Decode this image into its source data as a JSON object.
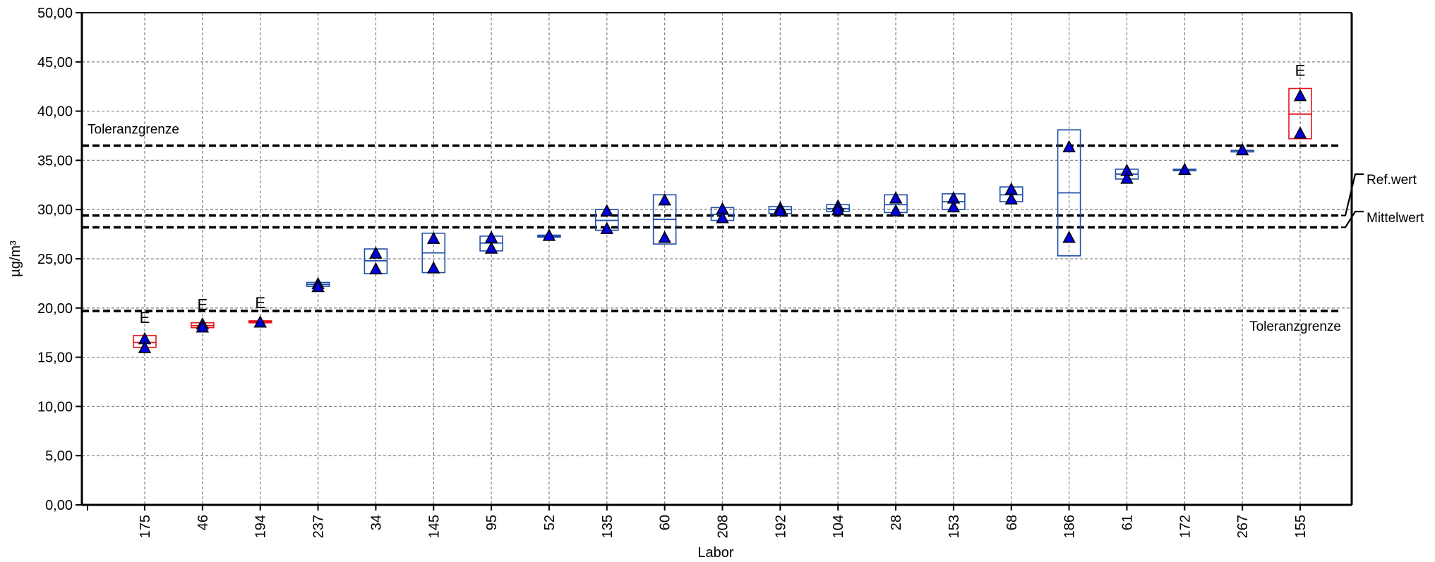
{
  "chart_data": {
    "type": "box",
    "xlabel": "Labor",
    "ylabel": "µg/m³",
    "ylim": [
      0,
      50
    ],
    "yticks": [
      "0,00",
      "5,00",
      "10,00",
      "15,00",
      "20,00",
      "25,00",
      "30,00",
      "35,00",
      "40,00",
      "45,00",
      "50,00"
    ],
    "grid": true,
    "colors": {
      "normal": "#1f4fa8",
      "flagged": "#e8141c",
      "marker": "#0000dd"
    },
    "reference_lines": [
      {
        "name": "Toleranzgrenze",
        "value": 36.5,
        "label_position": "left-above"
      },
      {
        "name": "Ref.wert",
        "value": 29.4,
        "label_position": "right"
      },
      {
        "name": "Mittelwert",
        "value": 28.2,
        "label_position": "right"
      },
      {
        "name": "Toleranzgrenze",
        "value": 19.7,
        "label_position": "right-below"
      }
    ],
    "labs": [
      {
        "lab": "175",
        "low": 16.0,
        "high": 17.2,
        "median": 16.5,
        "points": [
          16.8,
          15.9
        ],
        "flag": "E"
      },
      {
        "lab": "46",
        "low": 18.0,
        "high": 18.5,
        "median": 18.2,
        "points": [
          18.3,
          18.0
        ],
        "flag": "E"
      },
      {
        "lab": "194",
        "low": 18.5,
        "high": 18.7,
        "median": 18.6,
        "points": [
          18.5
        ],
        "flag": "E"
      },
      {
        "lab": "237",
        "low": 22.2,
        "high": 22.6,
        "median": 22.4,
        "points": [
          22.4,
          22.1
        ],
        "flag": ""
      },
      {
        "lab": "34",
        "low": 23.5,
        "high": 26.0,
        "median": 24.8,
        "points": [
          25.5,
          23.9
        ],
        "flag": ""
      },
      {
        "lab": "145",
        "low": 23.6,
        "high": 27.6,
        "median": 25.6,
        "points": [
          27.0,
          24.0
        ],
        "flag": ""
      },
      {
        "lab": "95",
        "low": 25.8,
        "high": 27.3,
        "median": 26.6,
        "points": [
          27.1,
          26.0
        ],
        "flag": ""
      },
      {
        "lab": "52",
        "low": 27.2,
        "high": 27.4,
        "median": 27.3,
        "points": [
          27.3
        ],
        "flag": ""
      },
      {
        "lab": "135",
        "low": 27.9,
        "high": 30.0,
        "median": 28.9,
        "points": [
          29.8,
          28.0
        ],
        "flag": ""
      },
      {
        "lab": "60",
        "low": 26.5,
        "high": 31.5,
        "median": 29.0,
        "points": [
          30.9,
          27.1
        ],
        "flag": ""
      },
      {
        "lab": "208",
        "low": 28.9,
        "high": 30.2,
        "median": 29.5,
        "points": [
          30.0,
          29.1
        ],
        "flag": ""
      },
      {
        "lab": "192",
        "low": 29.6,
        "high": 30.3,
        "median": 30.0,
        "points": [
          30.1,
          29.8
        ],
        "flag": ""
      },
      {
        "lab": "104",
        "low": 29.8,
        "high": 30.5,
        "median": 30.1,
        "points": [
          30.3,
          29.9
        ],
        "flag": ""
      },
      {
        "lab": "28",
        "low": 29.7,
        "high": 31.5,
        "median": 30.5,
        "points": [
          31.1,
          29.8
        ],
        "flag": ""
      },
      {
        "lab": "153",
        "low": 30.0,
        "high": 31.6,
        "median": 30.8,
        "points": [
          31.1,
          30.2
        ],
        "flag": ""
      },
      {
        "lab": "68",
        "low": 30.8,
        "high": 32.3,
        "median": 31.5,
        "points": [
          32.0,
          31.0
        ],
        "flag": ""
      },
      {
        "lab": "186",
        "low": 25.3,
        "high": 38.1,
        "median": 31.7,
        "points": [
          36.3,
          27.1
        ],
        "flag": ""
      },
      {
        "lab": "61",
        "low": 33.1,
        "high": 34.1,
        "median": 33.6,
        "points": [
          33.9,
          33.1
        ],
        "flag": ""
      },
      {
        "lab": "172",
        "low": 34.0,
        "high": 34.1,
        "median": 34.0,
        "points": [
          34.0
        ],
        "flag": ""
      },
      {
        "lab": "267",
        "low": 35.9,
        "high": 36.0,
        "median": 36.0,
        "points": [
          36.0
        ],
        "flag": ""
      },
      {
        "lab": "155",
        "low": 37.2,
        "high": 42.3,
        "median": 39.7,
        "points": [
          41.5,
          37.7
        ],
        "flag": "E"
      }
    ]
  }
}
